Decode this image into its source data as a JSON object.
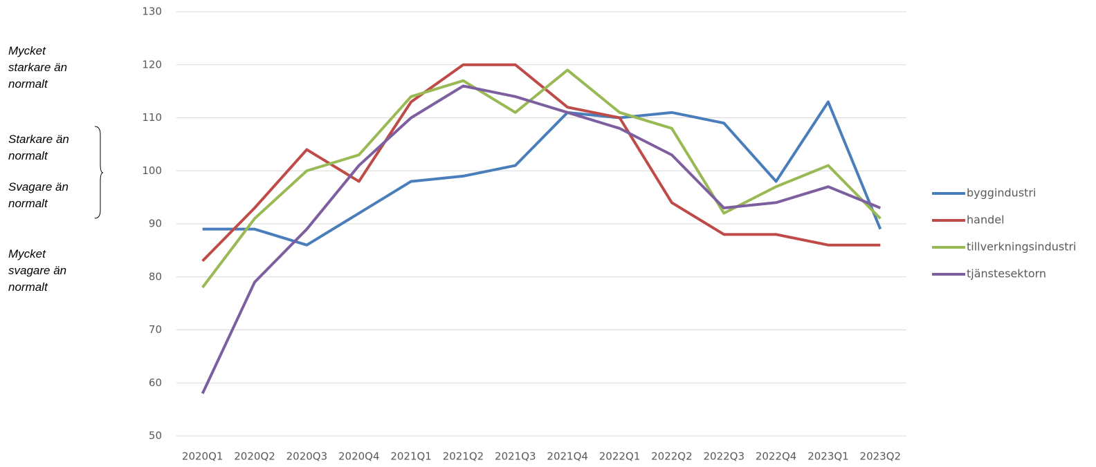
{
  "chart_data": {
    "type": "line",
    "categories": [
      "2020Q1",
      "2020Q2",
      "2020Q3",
      "2020Q4",
      "2021Q1",
      "2021Q2",
      "2021Q3",
      "2021Q4",
      "2022Q1",
      "2022Q2",
      "2022Q3",
      "2022Q4",
      "2023Q1",
      "2023Q2"
    ],
    "series": [
      {
        "name": "byggindustri",
        "color": "#4a7ebb",
        "values": [
          89,
          89,
          86,
          92,
          98,
          99,
          101,
          111,
          110,
          111,
          109,
          98,
          113,
          89
        ]
      },
      {
        "name": "handel",
        "color": "#be4b48",
        "values": [
          83,
          93,
          104,
          98,
          113,
          120,
          120,
          112,
          110,
          94,
          88,
          88,
          86,
          86
        ]
      },
      {
        "name": "tillverkningsindustri",
        "color": "#98b954",
        "values": [
          78,
          91,
          100,
          103,
          114,
          117,
          111,
          119,
          111,
          108,
          92,
          97,
          101,
          91
        ]
      },
      {
        "name": "tjänstesektorn",
        "color": "#7d5fa0",
        "values": [
          58,
          79,
          89,
          101,
          110,
          116,
          114,
          111,
          108,
          103,
          93,
          94,
          97,
          93
        ]
      }
    ],
    "ylim": [
      50,
      130
    ],
    "yticks": [
      50,
      60,
      70,
      80,
      90,
      100,
      110,
      120,
      130
    ],
    "grid": true,
    "legend": "right",
    "annotations": [
      "Mycket starkare än normalt",
      "Starkare än normalt",
      "Svagare än normalt",
      "Mycket svagare än normalt"
    ]
  }
}
